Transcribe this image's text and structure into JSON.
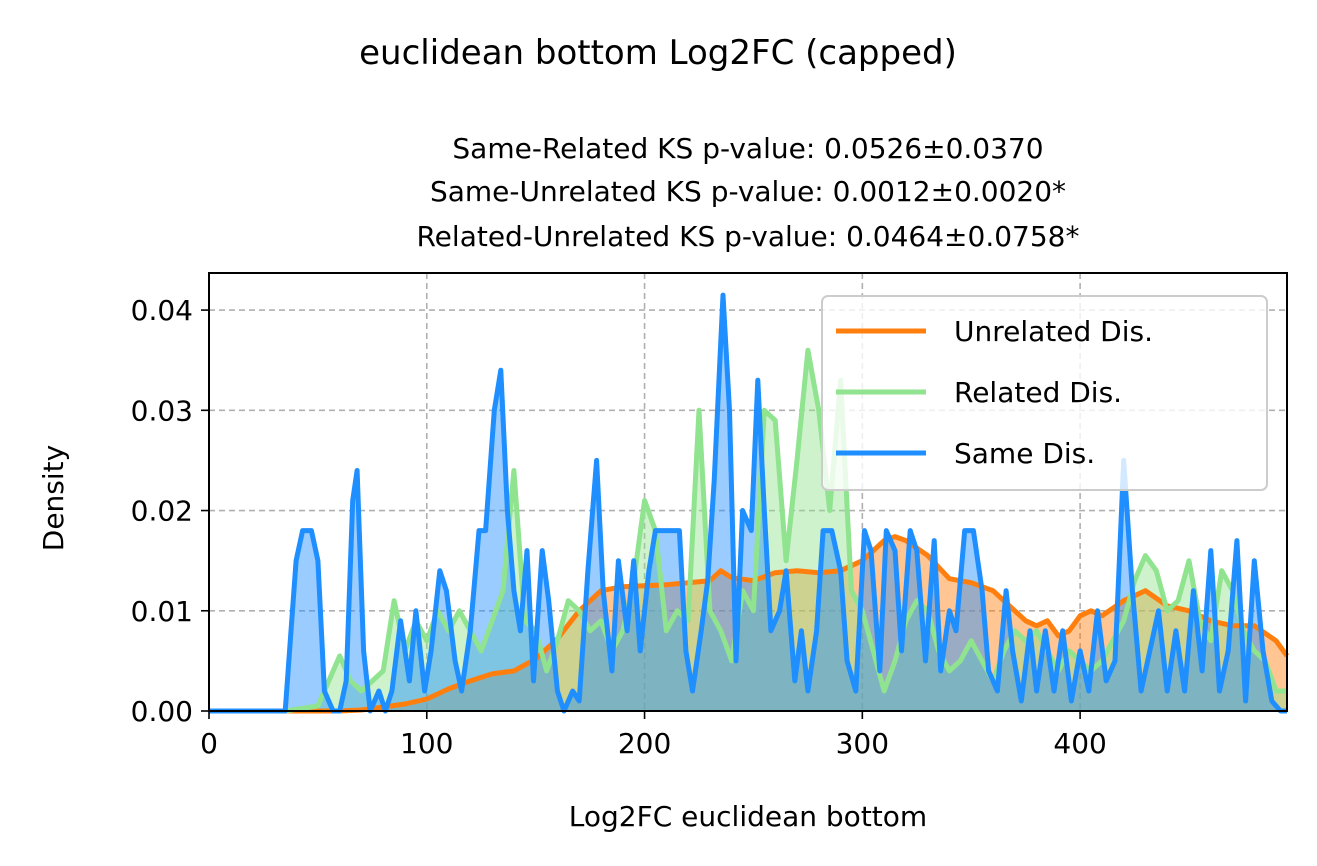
{
  "chart_data": {
    "type": "area",
    "suptitle": "euclidean bottom Log2FC (capped)",
    "title_lines": [
      "Same-Related KS p-value: 0.0526±0.0370",
      "Same-Unrelated KS p-value: 0.0012±0.0020*",
      "Related-Unrelated KS p-value: 0.0464±0.0758*"
    ],
    "xlabel": "Log2FC euclidean bottom",
    "ylabel": "Density",
    "xlim": [
      0,
      495
    ],
    "ylim": [
      0,
      0.0437
    ],
    "xticks": [
      0,
      100,
      200,
      300,
      400
    ],
    "xtick_labels": [
      "0",
      "100",
      "200",
      "300",
      "400"
    ],
    "yticks": [
      0,
      0.01,
      0.02,
      0.03,
      0.04
    ],
    "ytick_labels": [
      "0.00",
      "0.01",
      "0.02",
      "0.03",
      "0.04"
    ],
    "grid": true,
    "legend_position": "top-right",
    "series": [
      {
        "name": "Unrelated Dis.",
        "color": "#ff7f0e",
        "x": [
          0,
          35,
          60,
          70,
          80,
          90,
          100,
          110,
          120,
          130,
          140,
          150,
          160,
          170,
          180,
          190,
          200,
          210,
          220,
          230,
          235,
          240,
          250,
          260,
          270,
          280,
          290,
          300,
          310,
          315,
          320,
          330,
          340,
          350,
          360,
          370,
          375,
          380,
          385,
          390,
          395,
          400,
          405,
          410,
          420,
          430,
          440,
          450,
          460,
          470,
          480,
          490,
          495
        ],
        "y": [
          0,
          0,
          0,
          0.0001,
          0.0004,
          0.0007,
          0.0012,
          0.0022,
          0.003,
          0.0037,
          0.004,
          0.0052,
          0.0072,
          0.01,
          0.012,
          0.0124,
          0.0125,
          0.0126,
          0.0128,
          0.013,
          0.014,
          0.0133,
          0.013,
          0.0138,
          0.014,
          0.0138,
          0.014,
          0.015,
          0.017,
          0.0174,
          0.017,
          0.0155,
          0.0132,
          0.0128,
          0.012,
          0.01,
          0.009,
          0.0085,
          0.009,
          0.0075,
          0.008,
          0.0095,
          0.01,
          0.0095,
          0.011,
          0.012,
          0.0105,
          0.01,
          0.009,
          0.0085,
          0.0085,
          0.007,
          0.0055
        ]
      },
      {
        "name": "Related Dis.",
        "color": "#90e38f",
        "x": [
          0,
          35,
          50,
          55,
          60,
          65,
          70,
          80,
          85,
          90,
          95,
          100,
          105,
          110,
          115,
          120,
          125,
          130,
          135,
          140,
          145,
          150,
          155,
          160,
          165,
          170,
          175,
          180,
          185,
          190,
          195,
          200,
          205,
          210,
          215,
          220,
          225,
          230,
          235,
          240,
          245,
          250,
          255,
          260,
          265,
          270,
          275,
          280,
          285,
          290,
          295,
          300,
          305,
          310,
          315,
          320,
          325,
          330,
          335,
          340,
          345,
          350,
          355,
          360,
          365,
          370,
          375,
          380,
          385,
          390,
          395,
          400,
          405,
          410,
          415,
          420,
          425,
          430,
          435,
          440,
          445,
          450,
          455,
          460,
          465,
          470,
          475,
          480,
          485,
          490,
          495
        ],
        "y": [
          0,
          0,
          0.0005,
          0.003,
          0.0055,
          0.003,
          0.002,
          0.004,
          0.011,
          0.006,
          0.009,
          0.007,
          0.01,
          0.008,
          0.01,
          0.008,
          0.006,
          0.009,
          0.012,
          0.024,
          0.009,
          0.008,
          0.004,
          0.007,
          0.011,
          0.01,
          0.008,
          0.009,
          0.006,
          0.008,
          0.013,
          0.021,
          0.018,
          0.008,
          0.01,
          0.009,
          0.03,
          0.01,
          0.008,
          0.005,
          0.012,
          0.01,
          0.03,
          0.029,
          0.015,
          0.025,
          0.036,
          0.03,
          0.02,
          0.033,
          0.012,
          0.01,
          0.006,
          0.002,
          0.005,
          0.009,
          0.011,
          0.01,
          0.006,
          0.004,
          0.005,
          0.007,
          0.005,
          0.003,
          0.006,
          0.008,
          0.007,
          0.008,
          0.006,
          0.004,
          0.006,
          0.005,
          0.004,
          0.005,
          0.007,
          0.009,
          0.013,
          0.0155,
          0.014,
          0.01,
          0.011,
          0.015,
          0.009,
          0.007,
          0.014,
          0.012,
          0.008,
          0.006,
          0.005,
          0.002,
          0.002
        ]
      },
      {
        "name": "Same Dis.",
        "color": "#1f8fff",
        "x": [
          0,
          35,
          40,
          43,
          47,
          50,
          53,
          57,
          60,
          63,
          66,
          68,
          71,
          74,
          78,
          81,
          84,
          88,
          92,
          95,
          99,
          102,
          106,
          109,
          113,
          116,
          120,
          124,
          127,
          131,
          134,
          137,
          140,
          143,
          146,
          149,
          153,
          156,
          160,
          163,
          167,
          170,
          174,
          178,
          181,
          185,
          188,
          192,
          195,
          198,
          202,
          205,
          208,
          212,
          216,
          219,
          222,
          226,
          229,
          232,
          236,
          239,
          242,
          245,
          249,
          252,
          255,
          258,
          262,
          265,
          269,
          272,
          275,
          279,
          282,
          286,
          290,
          293,
          297,
          301,
          304,
          308,
          311,
          315,
          318,
          322,
          325,
          329,
          333,
          336,
          340,
          343,
          347,
          351,
          355,
          358,
          362,
          366,
          369,
          373,
          377,
          380,
          384,
          388,
          392,
          396,
          400,
          404,
          408,
          412,
          416,
          420,
          424,
          428,
          432,
          436,
          440,
          444,
          448,
          452,
          456,
          460,
          464,
          468,
          472,
          476,
          480,
          484,
          488,
          492,
          495
        ],
        "y": [
          0,
          0,
          0.015,
          0.018,
          0.018,
          0.015,
          0.002,
          0,
          0,
          0.003,
          0.021,
          0.024,
          0.006,
          0,
          0.002,
          0,
          0.002,
          0.009,
          0.003,
          0.01,
          0.002,
          0.006,
          0.014,
          0.012,
          0.005,
          0.002,
          0.008,
          0.018,
          0.018,
          0.03,
          0.034,
          0.02,
          0.012,
          0.008,
          0.016,
          0.003,
          0.016,
          0.011,
          0.002,
          0,
          0.002,
          0.001,
          0.014,
          0.025,
          0.012,
          0.004,
          0.015,
          0.008,
          0.015,
          0.006,
          0.014,
          0.018,
          0.018,
          0.018,
          0.018,
          0.006,
          0.002,
          0.008,
          0.013,
          0.023,
          0.0415,
          0.03,
          0.005,
          0.02,
          0.018,
          0.033,
          0.02,
          0.008,
          0.01,
          0.014,
          0.003,
          0.008,
          0.002,
          0.008,
          0.018,
          0.018,
          0.014,
          0.005,
          0.002,
          0.018,
          0.016,
          0.004,
          0.018,
          0.016,
          0.006,
          0.018,
          0.016,
          0.005,
          0.017,
          0.004,
          0.01,
          0.008,
          0.018,
          0.018,
          0.012,
          0.004,
          0.002,
          0.012,
          0.006,
          0.001,
          0.008,
          0.002,
          0.008,
          0.002,
          0.008,
          0.001,
          0.006,
          0.002,
          0.01,
          0.003,
          0.005,
          0.025,
          0.012,
          0.002,
          0.006,
          0.01,
          0.002,
          0.008,
          0.002,
          0.012,
          0.004,
          0.016,
          0.002,
          0.006,
          0.017,
          0.001,
          0.015,
          0.006,
          0.001,
          0,
          0
        ]
      }
    ]
  }
}
